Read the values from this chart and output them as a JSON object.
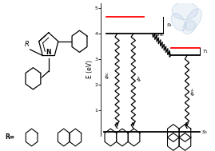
{
  "bg_color": "#ffffff",
  "fig_width": 2.69,
  "fig_height": 1.89,
  "dpi": 100,
  "S0": 0.15,
  "S1": 4.0,
  "S1_red": 4.65,
  "T1": 3.15,
  "T1_red": 3.45,
  "ylim": [
    0,
    5.2
  ],
  "yticks": [
    1.0,
    2.0,
    3.0,
    4.0,
    5.0
  ],
  "ylabel": "E (eV)",
  "ylabel_fontsize": 5.5,
  "tick_fontsize": 4.5,
  "label_fontsize": 4.5,
  "black": "#000000",
  "red": "#ff0000",
  "blue_blob": "#aac4e0"
}
